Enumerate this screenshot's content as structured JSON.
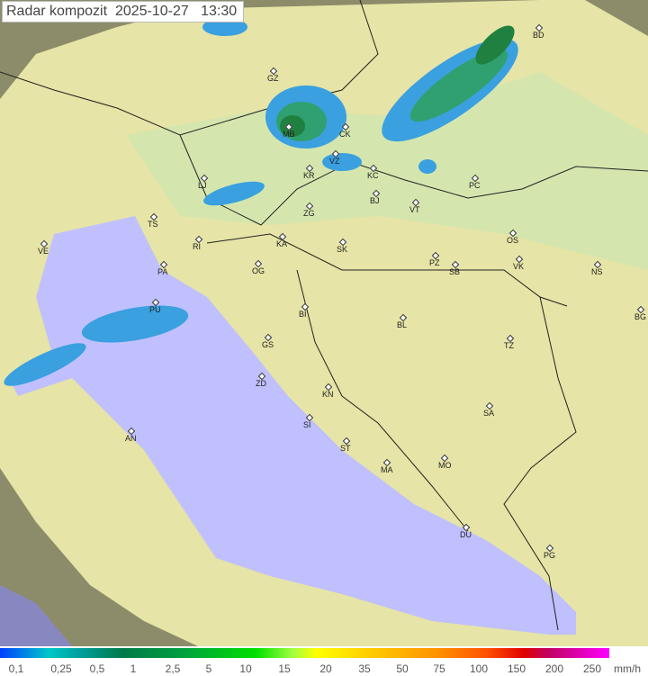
{
  "title": "Radar kompozit  2025-10-27   13:30",
  "colors": {
    "sea": "#c0c0ff",
    "land": "#e8e6a8",
    "outside_range": "#9a9a70",
    "rain_light": "#3aa0e0",
    "rain_medium": "#30a070",
    "rain_heavy": "#208040"
  },
  "cities": [
    "BD",
    "GZ",
    "MB",
    "CK",
    "VZ",
    "KR",
    "KC",
    "LJ",
    "ZG",
    "BJ",
    "VT",
    "PC",
    "TS",
    "VE",
    "RI",
    "KA",
    "SK",
    "OS",
    "PZ",
    "SB",
    "VK",
    "NS",
    "PA",
    "OG",
    "PU",
    "BI",
    "BL",
    "BG",
    "GS",
    "TZ",
    "ZD",
    "KN",
    "SA",
    "SI",
    "AN",
    "ST",
    "MA",
    "MO",
    "DU",
    "PG"
  ],
  "legend": {
    "labels": [
      "0,1",
      "0,25",
      "0,5",
      "1",
      "2,5",
      "5",
      "10",
      "15",
      "20",
      "35",
      "50",
      "75",
      "100",
      "150",
      "200",
      "250"
    ],
    "unit": "mm/h"
  }
}
